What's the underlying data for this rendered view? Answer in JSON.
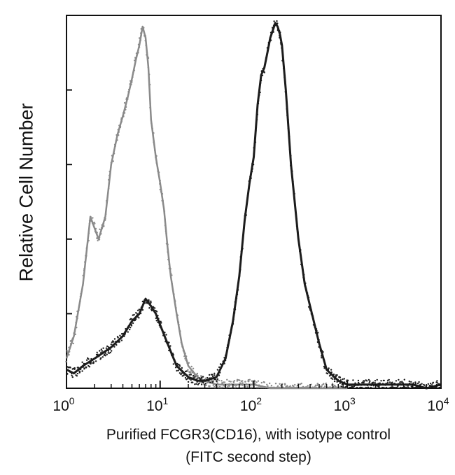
{
  "chart_data": {
    "type": "line",
    "x_scale": "log",
    "xlim": [
      1,
      10000
    ],
    "x_ticks": [
      {
        "value": 1,
        "base": "10",
        "exp": "0"
      },
      {
        "value": 10,
        "base": "10",
        "exp": "1"
      },
      {
        "value": 100,
        "base": "10",
        "exp": "2"
      },
      {
        "value": 1000,
        "base": "10",
        "exp": "3"
      },
      {
        "value": 10000,
        "base": "10",
        "exp": "4"
      }
    ],
    "ylabel": "Relative Cell Number",
    "xlabel": "Purified FCGR3(CD16), with isotype control",
    "xlabel_line2": "(FITC second step)",
    "ylim": [
      0,
      100
    ],
    "y_ticks": [
      0,
      20,
      40,
      60,
      80,
      100
    ],
    "grid": false,
    "legend": "none",
    "series": [
      {
        "color": "#8a8a8a",
        "x": [
          1,
          1.2,
          1.5,
          1.8,
          2.2,
          2.6,
          3.0,
          3.5,
          4.0,
          4.5,
          5.0,
          5.5,
          6.0,
          6.5,
          7.0,
          7.5,
          8.0,
          9.0,
          10,
          11,
          12,
          13,
          15,
          17,
          20,
          25,
          30,
          40,
          50,
          70,
          100,
          150,
          200,
          300,
          500,
          1000
        ],
        "values": [
          8,
          14,
          28,
          46,
          40,
          46,
          60,
          68,
          73,
          78,
          83,
          88,
          92,
          97,
          94,
          86,
          72,
          62,
          55,
          48,
          38,
          30,
          20,
          12,
          6,
          3,
          2,
          1,
          1,
          1,
          1,
          0,
          0,
          0,
          0,
          0
        ]
      },
      {
        "color": "#1c1c1c",
        "x": [
          1,
          1.2,
          1.5,
          2,
          3,
          4,
          5,
          6,
          7,
          8,
          9,
          10,
          12,
          15,
          20,
          25,
          30,
          40,
          50,
          60,
          70,
          80,
          90,
          100,
          110,
          120,
          130,
          140,
          150,
          160,
          170,
          180,
          190,
          200,
          220,
          250,
          300,
          350,
          400,
          500,
          600,
          800,
          1000,
          1500,
          2000,
          3000,
          5000,
          7000,
          10000
        ],
        "values": [
          5,
          4,
          6,
          8,
          11,
          14,
          18,
          20,
          24,
          22,
          20,
          17,
          12,
          6,
          3,
          2,
          2,
          3,
          8,
          18,
          30,
          45,
          55,
          62,
          76,
          84,
          86,
          90,
          94,
          96,
          98,
          97,
          95,
          92,
          80,
          60,
          40,
          28,
          22,
          12,
          5,
          2,
          1,
          1,
          1,
          1,
          1,
          0,
          1
        ]
      }
    ]
  }
}
